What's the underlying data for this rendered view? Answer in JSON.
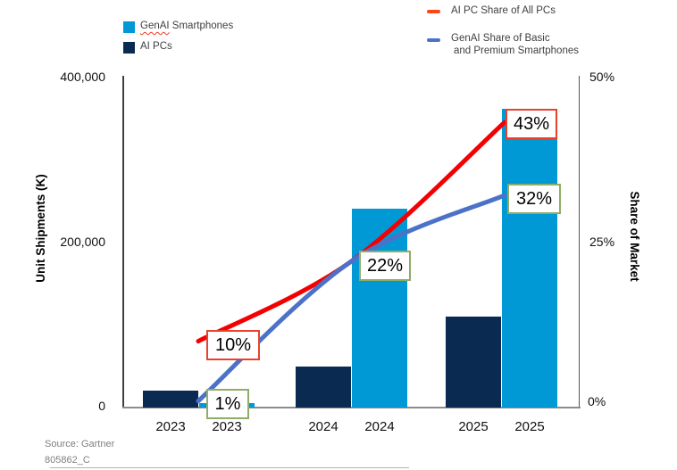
{
  "legend": {
    "bars": [
      {
        "label_word1": "GenAI",
        "label_rest": " Smartphones",
        "color": "#0099D6"
      },
      {
        "label_word1": "AI PCs",
        "label_rest": "",
        "color": "#0A2A52"
      }
    ],
    "lines": [
      {
        "label": "AI PC Share of All PCs",
        "dash_color": "#FF4713"
      },
      {
        "label_line1": "GenAI Share of Basic",
        "label_line2": "and Premium Smartphones",
        "dash_color": "#4C72C8"
      }
    ]
  },
  "chart_data": {
    "type": "combo_bar_line",
    "title": "",
    "categories": [
      "2023",
      "2024",
      "2025"
    ],
    "bar_series": [
      {
        "name": "AI PCs",
        "color": "#0A2A52",
        "values": [
          20000,
          50000,
          110000
        ]
      },
      {
        "name": "GenAI Smartphones",
        "color": "#0099D6",
        "values": [
          5000,
          240000,
          360000
        ]
      }
    ],
    "line_series": [
      {
        "name": "AI PC Share of All PCs",
        "color": "#F50002",
        "label_border": "#E8412C",
        "values_pct": [
          10,
          22,
          43
        ]
      },
      {
        "name": "GenAI Share of Basic and Premium Smartphones",
        "color": "#4C72C8",
        "label_border": "#8FAC68",
        "values_pct": [
          1,
          22,
          32
        ]
      }
    ],
    "data_labels": [
      {
        "id": "pct10",
        "text": "10%",
        "series": 0
      },
      {
        "id": "pct1",
        "text": "1%",
        "series": 1
      },
      {
        "id": "pct22",
        "text": "22%",
        "series": 1
      },
      {
        "id": "pct43",
        "text": "43%",
        "series": 0
      },
      {
        "id": "pct32",
        "text": "32%",
        "series": 1
      }
    ],
    "left_axis": {
      "title": "Unit Shipments (K)",
      "ticks": [
        "400,000",
        "200,000",
        "0"
      ],
      "range": [
        0,
        400000
      ]
    },
    "right_axis": {
      "title": "Share of Market",
      "ticks": [
        "50%",
        "25%",
        "0%"
      ],
      "range_pct": [
        0,
        50
      ]
    },
    "x_axis": {
      "tick_labels": [
        "2023",
        "2023",
        "2024",
        "2024",
        "2025",
        "2025"
      ]
    },
    "grid": false,
    "legend_position": "top"
  },
  "footer": {
    "source": "Source: Gartner",
    "doc_id": "805862_C"
  }
}
